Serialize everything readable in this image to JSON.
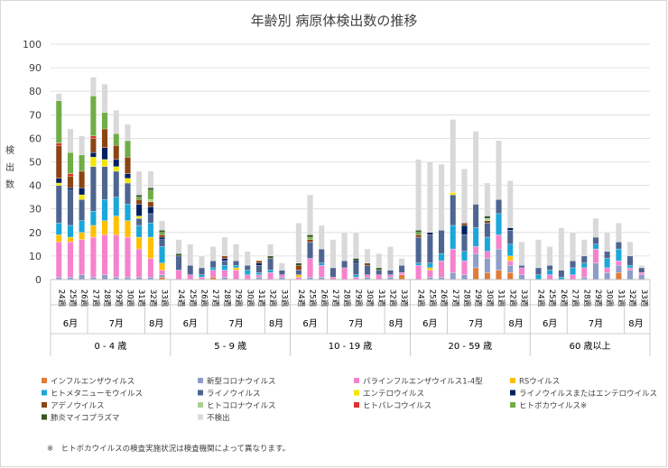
{
  "chart_data": {
    "type": "bar",
    "stacked": true,
    "title": "年齢別 病原体検出数の推移",
    "ylabel": "検出数",
    "ylim": [
      0,
      100
    ],
    "yticks": [
      0,
      10,
      20,
      30,
      40,
      50,
      60,
      70,
      80,
      90,
      100
    ],
    "legend_position": "bottom",
    "footnote": "※　ヒトボカウイルスの検査実施状況は検査機関によって異なります。",
    "groups": [
      {
        "label": "0 - 4 歳",
        "months": [
          {
            "label": "6月",
            "weeks": 3
          },
          {
            "label": "7月",
            "weeks": 5
          },
          {
            "label": "8月",
            "weeks": 2
          }
        ]
      },
      {
        "label": "5 - 9 歳",
        "months": [
          {
            "label": "6月",
            "weeks": 3
          },
          {
            "label": "7月",
            "weeks": 5
          },
          {
            "label": "8月",
            "weeks": 2
          }
        ]
      },
      {
        "label": "10 - 19 歳",
        "months": [
          {
            "label": "6月",
            "weeks": 3
          },
          {
            "label": "7月",
            "weeks": 5
          },
          {
            "label": "8月",
            "weeks": 2
          }
        ]
      },
      {
        "label": "20 - 59 歳",
        "months": [
          {
            "label": "6月",
            "weeks": 3
          },
          {
            "label": "7月",
            "weeks": 5
          },
          {
            "label": "8月",
            "weeks": 2
          }
        ]
      },
      {
        "label": "60 歳以上",
        "months": [
          {
            "label": "6月",
            "weeks": 3
          },
          {
            "label": "7月",
            "weeks": 5
          },
          {
            "label": "8月",
            "weeks": 2
          }
        ]
      }
    ],
    "week_labels": [
      "24週",
      "25週",
      "26週",
      "27週",
      "28週",
      "29週",
      "30週",
      "31週",
      "32週",
      "33週"
    ],
    "series": [
      {
        "name": "インフルエンザウイルス",
        "color": "#e07b39",
        "values": [
          [
            0,
            0,
            0,
            0,
            0,
            0,
            0,
            0,
            0,
            1
          ],
          [
            0,
            0,
            0,
            1,
            0,
            0,
            0,
            0,
            0,
            0
          ],
          [
            0,
            0,
            0,
            0,
            0,
            0,
            0,
            0,
            0,
            2
          ],
          [
            0,
            0,
            0,
            0,
            0,
            5,
            3,
            4,
            3,
            0
          ],
          [
            0,
            0,
            0,
            0,
            0,
            0,
            0,
            3,
            0,
            0
          ]
        ]
      },
      {
        "name": "新型コロナウイルス",
        "color": "#8e9ec8",
        "values": [
          [
            1,
            1,
            2,
            1,
            2,
            1,
            1,
            1,
            1,
            1
          ],
          [
            0,
            0,
            0,
            0,
            1,
            0,
            0,
            1,
            0,
            1
          ],
          [
            0,
            1,
            1,
            0,
            0,
            0,
            1,
            0,
            1,
            0
          ],
          [
            0,
            1,
            1,
            3,
            2,
            6,
            6,
            9,
            3,
            2
          ],
          [
            0,
            0,
            0,
            0,
            1,
            7,
            3,
            3,
            4,
            2
          ]
        ]
      },
      {
        "name": "パラインフルエンザウイルス1-4型",
        "color": "#f583cc",
        "values": [
          [
            15,
            15,
            15,
            17,
            17,
            18,
            17,
            12,
            8,
            2
          ],
          [
            4,
            2,
            1,
            3,
            3,
            4,
            2,
            1,
            3,
            1
          ],
          [
            1,
            8,
            5,
            1,
            5,
            1,
            1,
            2,
            1,
            1
          ],
          [
            6,
            3,
            7,
            10,
            6,
            3,
            3,
            6,
            2,
            3
          ],
          [
            0,
            2,
            0,
            2,
            4,
            6,
            2,
            2,
            1,
            1
          ]
        ]
      },
      {
        "name": "RSウイルス",
        "color": "#ffc000",
        "values": [
          [
            3,
            2,
            3,
            5,
            6,
            8,
            7,
            5,
            9,
            3
          ],
          [
            0,
            0,
            0,
            0,
            0,
            1,
            0,
            0,
            0,
            0
          ],
          [
            1,
            0,
            0,
            0,
            0,
            0,
            0,
            0,
            0,
            0
          ],
          [
            0,
            1,
            0,
            0,
            0,
            0,
            0,
            0,
            2,
            0
          ],
          [
            0,
            0,
            0,
            0,
            0,
            0,
            0,
            0,
            0,
            0
          ]
        ]
      },
      {
        "name": "ヒトメタニューモウイルス",
        "color": "#1aa7d9",
        "values": [
          [
            5,
            5,
            5,
            6,
            9,
            8,
            7,
            5,
            6,
            7
          ],
          [
            0,
            0,
            1,
            1,
            2,
            1,
            2,
            1,
            1,
            0
          ],
          [
            0,
            0,
            1,
            0,
            0,
            1,
            0,
            0,
            0,
            0
          ],
          [
            1,
            2,
            3,
            10,
            4,
            8,
            6,
            9,
            5,
            0
          ],
          [
            2,
            2,
            1,
            3,
            2,
            2,
            4,
            5,
            1,
            0
          ]
        ]
      },
      {
        "name": "ライノウイルス",
        "color": "#4f6591",
        "values": [
          [
            16,
            15,
            9,
            19,
            14,
            11,
            9,
            3,
            4,
            3
          ],
          [
            6,
            4,
            3,
            3,
            2,
            2,
            2,
            3,
            5,
            2
          ],
          [
            2,
            7,
            6,
            4,
            3,
            5,
            4,
            2,
            2,
            3
          ],
          [
            11,
            12,
            10,
            13,
            7,
            10,
            6,
            6,
            6,
            1
          ],
          [
            3,
            2,
            3,
            3,
            3,
            3,
            3,
            3,
            4,
            2
          ]
        ]
      },
      {
        "name": "エンテロウイルス",
        "color": "#f2e600",
        "values": [
          [
            1,
            0,
            2,
            4,
            3,
            2,
            2,
            1,
            0,
            0
          ],
          [
            0,
            0,
            0,
            0,
            0,
            0,
            0,
            0,
            0,
            0
          ],
          [
            0,
            0,
            0,
            0,
            0,
            0,
            0,
            0,
            0,
            0
          ],
          [
            0,
            0,
            0,
            1,
            0,
            0,
            0,
            0,
            0,
            0
          ],
          [
            0,
            0,
            0,
            0,
            0,
            0,
            0,
            0,
            0,
            0
          ]
        ]
      },
      {
        "name": "ライノウイルスまたはエンテロウイルス",
        "color": "#002060",
        "values": [
          [
            2,
            1,
            3,
            2,
            5,
            3,
            2,
            5,
            3,
            1
          ],
          [
            0,
            0,
            0,
            0,
            1,
            0,
            0,
            1,
            0,
            0
          ],
          [
            0,
            0,
            0,
            0,
            0,
            1,
            0,
            0,
            0,
            0
          ],
          [
            0,
            1,
            0,
            0,
            4,
            0,
            0,
            0,
            1,
            0
          ],
          [
            0,
            0,
            0,
            0,
            0,
            0,
            0,
            0,
            0,
            0
          ]
        ]
      },
      {
        "name": "アデノウイルス",
        "color": "#8b4513",
        "values": [
          [
            14,
            5,
            7,
            6,
            8,
            6,
            7,
            2,
            2,
            1
          ],
          [
            0,
            0,
            0,
            0,
            1,
            0,
            0,
            1,
            0,
            0
          ],
          [
            2,
            1,
            0,
            0,
            0,
            0,
            1,
            0,
            0,
            0
          ],
          [
            1,
            0,
            0,
            0,
            1,
            0,
            1,
            0,
            0,
            0
          ],
          [
            0,
            0,
            0,
            0,
            0,
            0,
            0,
            0,
            0,
            0
          ]
        ]
      },
      {
        "name": "ヒトコロナウイルス",
        "color": "#a9d18e",
        "values": [
          [
            0,
            0,
            0,
            0,
            0,
            0,
            0,
            0,
            1,
            0
          ],
          [
            0,
            0,
            0,
            0,
            0,
            0,
            0,
            0,
            0,
            0
          ],
          [
            0,
            0,
            0,
            0,
            0,
            0,
            0,
            0,
            0,
            0
          ],
          [
            0,
            0,
            0,
            0,
            0,
            0,
            1,
            0,
            0,
            0
          ],
          [
            0,
            0,
            0,
            0,
            0,
            0,
            0,
            0,
            0,
            0
          ]
        ]
      },
      {
        "name": "ヒトパレコウイルス",
        "color": "#e03030",
        "values": [
          [
            1,
            1,
            0,
            1,
            0,
            0,
            0,
            0,
            0,
            0
          ],
          [
            0,
            0,
            0,
            0,
            0,
            0,
            0,
            0,
            0,
            0
          ],
          [
            0,
            0,
            0,
            0,
            0,
            0,
            0,
            0,
            0,
            0
          ],
          [
            0,
            0,
            0,
            0,
            0,
            0,
            0,
            0,
            0,
            0
          ],
          [
            0,
            0,
            0,
            0,
            0,
            0,
            0,
            0,
            0,
            0
          ]
        ]
      },
      {
        "name": "ヒトボカウイルス※",
        "color": "#70ad47",
        "values": [
          [
            18,
            9,
            7,
            17,
            7,
            5,
            7,
            1,
            4,
            1
          ],
          [
            0,
            0,
            0,
            0,
            0,
            0,
            0,
            0,
            0,
            0
          ],
          [
            0,
            1,
            0,
            0,
            0,
            0,
            0,
            0,
            0,
            0
          ],
          [
            1,
            0,
            0,
            0,
            0,
            0,
            0,
            0,
            0,
            0
          ],
          [
            0,
            0,
            0,
            0,
            0,
            0,
            0,
            0,
            0,
            0
          ]
        ]
      },
      {
        "name": "肺炎マイコプラズマ",
        "color": "#385723",
        "values": [
          [
            0,
            0,
            0,
            0,
            0,
            0,
            0,
            1,
            1,
            1
          ],
          [
            1,
            0,
            0,
            0,
            0,
            0,
            0,
            0,
            1,
            0
          ],
          [
            1,
            1,
            0,
            0,
            0,
            1,
            0,
            1,
            0,
            0
          ],
          [
            1,
            0,
            0,
            0,
            0,
            0,
            1,
            0,
            0,
            0
          ],
          [
            0,
            0,
            0,
            0,
            0,
            0,
            0,
            0,
            0,
            0
          ]
        ]
      },
      {
        "name": "不検出",
        "color": "#d9d9d9",
        "values": [
          [
            3,
            10,
            8,
            8,
            12,
            10,
            7,
            10,
            7,
            4
          ],
          [
            6,
            9,
            5,
            6,
            8,
            7,
            6,
            0,
            5,
            3
          ],
          [
            17,
            17,
            10,
            12,
            12,
            11,
            6,
            6,
            10,
            3
          ],
          [
            30,
            30,
            28,
            31,
            23,
            31,
            14,
            25,
            20,
            10
          ],
          [
            12,
            8,
            18,
            12,
            7,
            8,
            8,
            8,
            6,
            1
          ]
        ]
      }
    ]
  }
}
